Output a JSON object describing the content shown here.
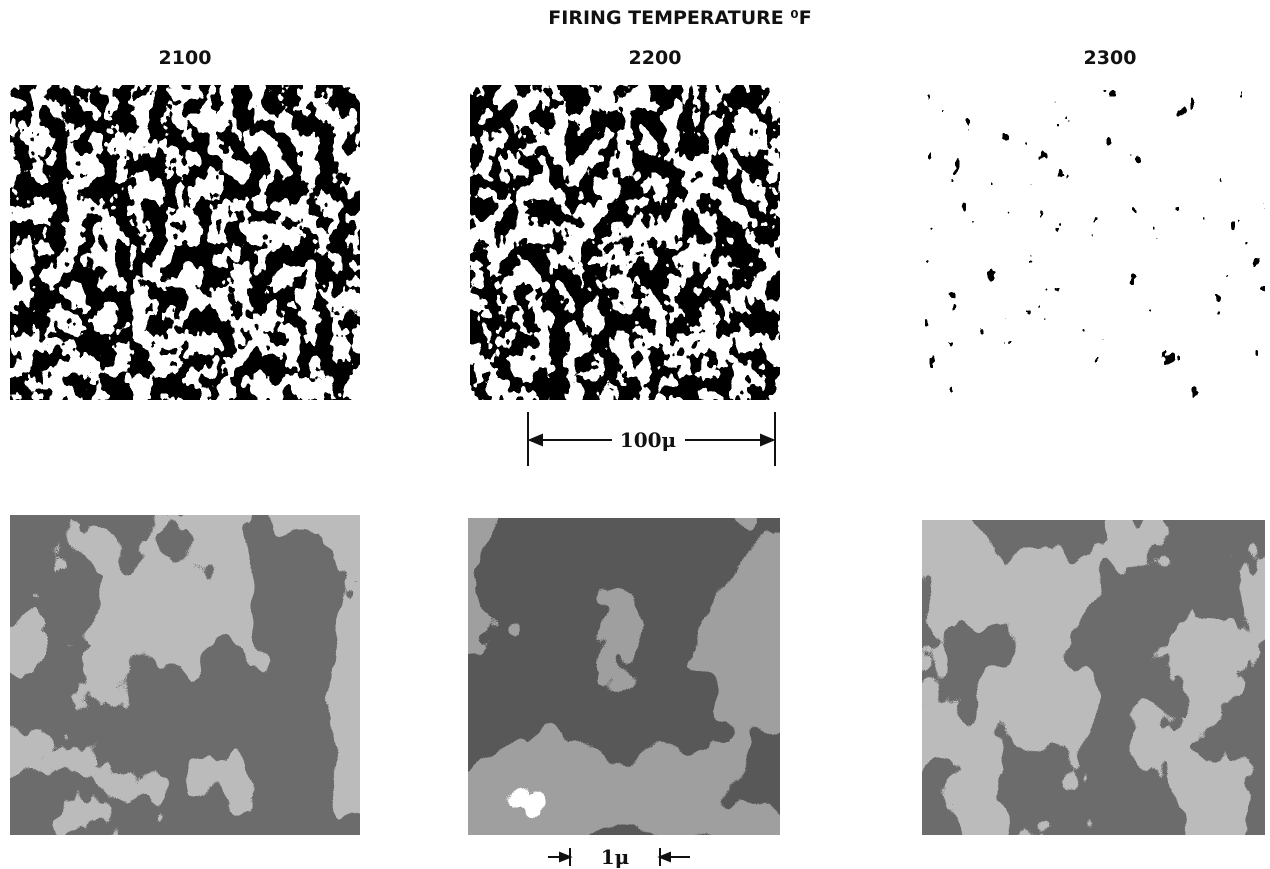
{
  "header": {
    "title": "FIRING TEMPERATURE ⁰F"
  },
  "columns": [
    "2100",
    "2200",
    "2300"
  ],
  "scale_bars": [
    "100μ",
    "1μ"
  ]
}
